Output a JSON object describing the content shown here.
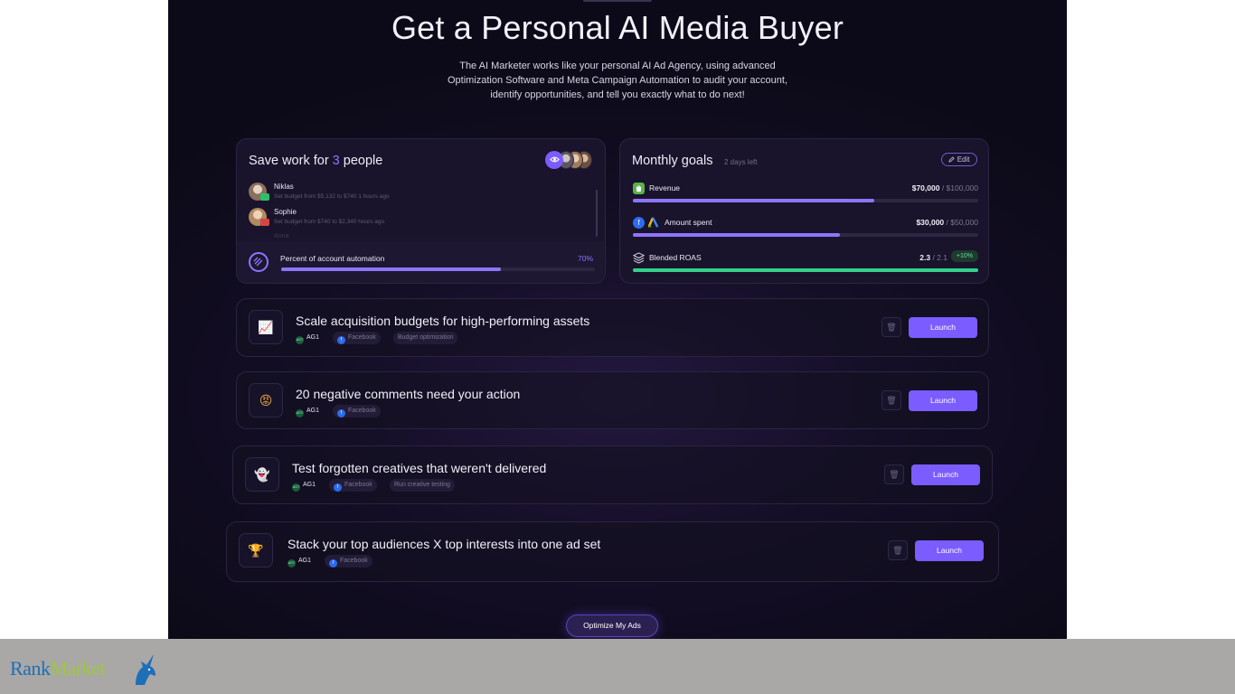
{
  "hero": {
    "title": "Get a Personal AI Media Buyer",
    "subtitle": "The AI Marketer works like your personal AI Ad Agency, using advanced Optimization Software and Meta Campaign Automation to audit your account, identify opportunities, and tell you exactly what to do next!"
  },
  "save_card": {
    "title_prefix": "Save work for ",
    "title_count": "3",
    "title_suffix": " people",
    "eye_icon": "eye-icon",
    "activity": [
      {
        "name": "Niklas",
        "detail": "Set budget from $5,132 to $740 1 hours ago",
        "badge_color": "#2fbf6a"
      },
      {
        "name": "Sophie",
        "detail": "Set budget from $740 to $2,340 hours ago",
        "badge_color": "#d64545"
      },
      {
        "name": "Anna"
      }
    ],
    "automation": {
      "label": "Percent of account automation",
      "percent_text": "70%",
      "percent": 70
    }
  },
  "goals_card": {
    "title": "Monthly goals",
    "days_left": "2 days left",
    "edit_label": "Edit",
    "goals": [
      {
        "label": "Revenue",
        "current": "$70,000",
        "target": "$100,000",
        "progress": 0.7,
        "icon": "shopify-icon",
        "icon_color": "#5bb14a"
      },
      {
        "label": "Amount spent",
        "current": "$30,000",
        "target": "$50,000",
        "progress": 0.6,
        "icon": "facebook-google-ads-icon",
        "icon_color": "#2d6bf0"
      },
      {
        "label": "Blended ROAS",
        "current": "2.3",
        "target": "2.1",
        "badge": "+10%",
        "progress": 1.0,
        "icon": "layers-icon",
        "icon_color": "#d7d3e6"
      }
    ]
  },
  "tasks": [
    {
      "title": "Scale acquisition budgets for high-performing assets",
      "icon": "chart-up-icon",
      "icon_glyph": "📈",
      "ag": "AG1",
      "platform": "Facebook",
      "category": "Budget optimization",
      "launch_label": "Launch"
    },
    {
      "title": "20 negative comments need your action",
      "icon": "angry-face-icon",
      "icon_glyph": "😡",
      "ag": "AG1",
      "platform": "Facebook",
      "category": "",
      "launch_label": "Launch"
    },
    {
      "title": "Test forgotten creatives that weren't delivered",
      "icon": "ghost-icon",
      "icon_glyph": "👻",
      "ag": "AG1",
      "platform": "Facebook",
      "category": "Run creative testing",
      "launch_label": "Launch"
    },
    {
      "title": "Stack your top audiences X top interests into one ad set",
      "icon": "trophy-icon",
      "icon_glyph": "🏆",
      "ag": "AG1",
      "platform": "Facebook",
      "category": "",
      "launch_label": "Launch"
    }
  ],
  "tag_ag_text": "AGT",
  "optimize_label": "Optimize My Ads",
  "logo": {
    "part1": "Rank",
    "part2": "Market"
  },
  "colors": {
    "accent": "#7b5cff",
    "bar": "#8d75ff",
    "green": "#34d08a",
    "footer": "#aaa7a7"
  }
}
